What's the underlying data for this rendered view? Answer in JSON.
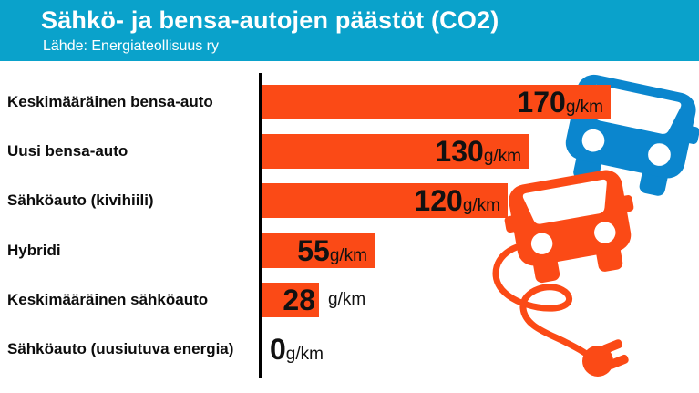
{
  "header": {
    "title": "Sähkö- ja bensa-autojen päästöt (CO2)",
    "source": "Lähde: Energiateollisuus ry",
    "background_color": "#0aa2cb",
    "text_color": "#ffffff"
  },
  "chart_data": {
    "type": "bar",
    "orientation": "horizontal",
    "title": "Sähkö- ja bensa-autojen päästöt (CO2)",
    "source": "Lähde: Energiateollisuus ry",
    "unit": "g/km",
    "categories": [
      "Keskimääräinen bensa-auto",
      "Uusi bensa-auto",
      "Sähköauto (kivihiili)",
      "Hybridi",
      "Keskimääräinen sähköauto",
      "Sähköauto (uusiutuva energia)"
    ],
    "values": [
      170,
      130,
      120,
      55,
      28,
      0
    ],
    "xlim": [
      0,
      170
    ],
    "grid": false,
    "legend": "none",
    "bar_color": "#fb4a16",
    "value_label_color": "#111111",
    "axis_color": "#000000"
  },
  "icons": {
    "gasoline_car_color": "#0b86ce",
    "electric_car_color": "#fb4a16"
  }
}
